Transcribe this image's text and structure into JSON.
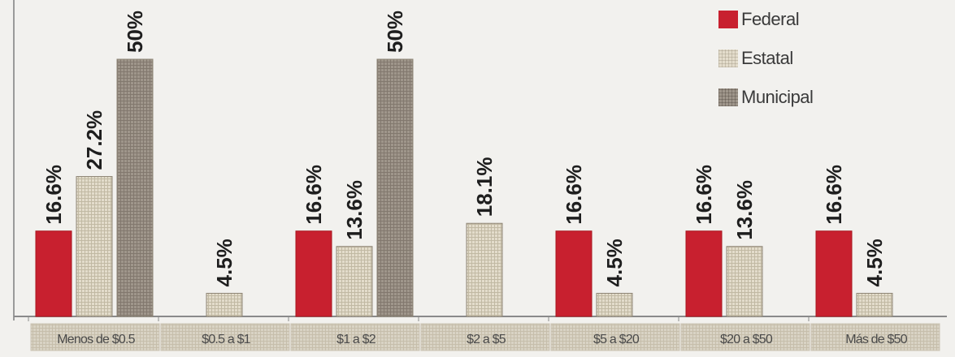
{
  "chart_data": {
    "type": "bar",
    "categories": [
      "Menos de $0.5",
      "$0.5 a $1",
      "$1 a $2",
      "$2 a $5",
      "$5 a $20",
      "$20 a $50",
      "Más de $50"
    ],
    "series": [
      {
        "name": "Federal",
        "color": "#c8202f",
        "values": [
          16.6,
          null,
          16.6,
          null,
          16.6,
          16.6,
          16.6
        ]
      },
      {
        "name": "Estatal",
        "color": "#e3dccb",
        "values": [
          27.2,
          4.5,
          13.6,
          18.1,
          4.5,
          13.6,
          4.5
        ]
      },
      {
        "name": "Municipal",
        "color": "#9f968b",
        "values": [
          50,
          null,
          50,
          null,
          null,
          null,
          null
        ]
      }
    ],
    "value_labels": [
      [
        "16.6%",
        "",
        "16.6%",
        "",
        "16.6%",
        "16.6%",
        "16.6%"
      ],
      [
        "27.2%",
        "4.5%",
        "13.6%",
        "18.1%",
        "4.5%",
        "13.6%",
        "4.5%"
      ],
      [
        "50%",
        "",
        "50%",
        "",
        "",
        "",
        ""
      ]
    ],
    "ylim": [
      0,
      50
    ],
    "xlabel": "",
    "ylabel": "",
    "grid": false,
    "legend_position": "top-right"
  }
}
